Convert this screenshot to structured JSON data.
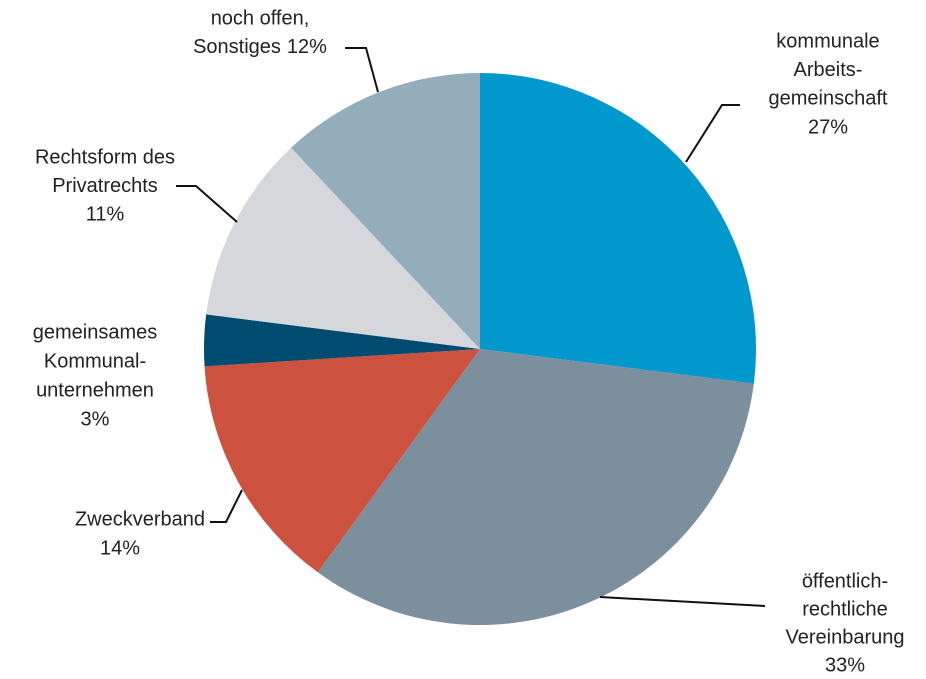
{
  "chart_data": {
    "type": "pie",
    "categories": [
      [
        "kommunale",
        "Arbeits-",
        "gemeinschaft"
      ],
      [
        "öffentlich-",
        "rechtliche",
        "Vereinbarung"
      ],
      [
        "Zweckverband"
      ],
      [
        "gemeinsames",
        "Kommunal-",
        "unternehmen"
      ],
      [
        "Rechtsform des",
        "Privatrechts"
      ],
      [
        "noch offen,",
        "Sonstiges"
      ]
    ],
    "values": [
      27,
      33,
      14,
      3,
      11,
      12
    ],
    "value_labels": [
      "27%",
      "33%",
      "14%",
      "3%",
      "11%",
      "12%"
    ],
    "colors": [
      "#0098cd",
      "#7b909c",
      "#cc523f",
      "#004b70",
      "#d5d7da",
      "#93adbb"
    ]
  }
}
